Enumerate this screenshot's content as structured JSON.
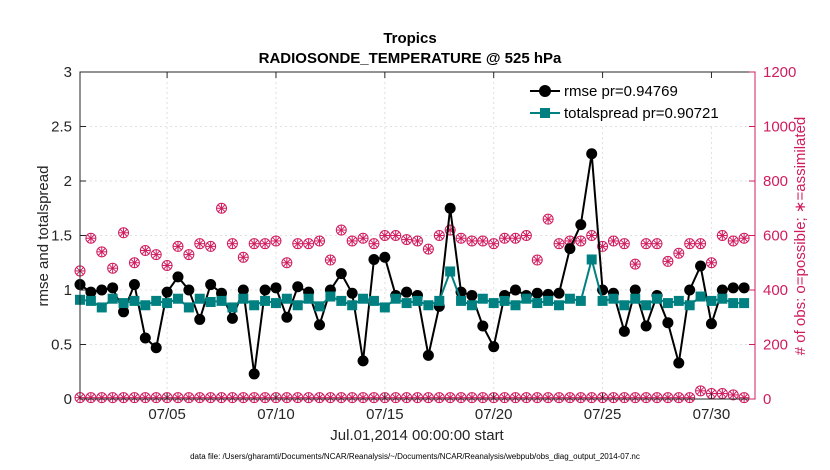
{
  "chart_data": {
    "type": "line",
    "title": "Tropics",
    "subtitle": "RADIOSONDE_TEMPERATURE @ 525 hPa",
    "xlabel": "Jul.01,2014 00:00:00 start",
    "ylabel": "rmse and totalspread",
    "y2label": "# of obs: o=possible; ∗=assimilated",
    "xlim": [
      1.0,
      32.0
    ],
    "ylim": [
      0,
      3
    ],
    "y2lim": [
      0,
      1200
    ],
    "grid": true,
    "legend_position": "top-right",
    "x_ticks": [
      {
        "value": 5,
        "label": "07/05"
      },
      {
        "value": 10,
        "label": "07/10"
      },
      {
        "value": 15,
        "label": "07/15"
      },
      {
        "value": 20,
        "label": "07/20"
      },
      {
        "value": 25,
        "label": "07/25"
      },
      {
        "value": 30,
        "label": "07/30"
      }
    ],
    "y_ticks": [
      "0",
      "0.5",
      "1",
      "1.5",
      "2",
      "2.5",
      "3"
    ],
    "y2_ticks": [
      "0",
      "200",
      "400",
      "600",
      "800",
      "1000",
      "1200"
    ],
    "series": [
      {
        "name": "rmse pr=0.94769",
        "color": "#000000",
        "marker": "circle",
        "x": [
          1.0,
          1.5,
          2.0,
          2.5,
          3.0,
          3.5,
          4.0,
          4.5,
          5.0,
          5.5,
          6.0,
          6.5,
          7.0,
          7.5,
          8.0,
          8.5,
          9.0,
          9.5,
          10.0,
          10.5,
          11.0,
          11.5,
          12.0,
          12.5,
          13.0,
          13.5,
          14.0,
          14.5,
          15.0,
          15.5,
          16.0,
          16.5,
          17.0,
          17.5,
          18.0,
          18.5,
          19.0,
          19.5,
          20.0,
          20.5,
          21.0,
          21.5,
          22.0,
          22.5,
          23.0,
          23.5,
          24.0,
          24.5,
          25.0,
          25.5,
          26.0,
          26.5,
          27.0,
          27.5,
          28.0,
          28.5,
          29.0,
          29.5,
          30.0,
          30.5,
          31.0,
          31.5
        ],
        "values": [
          1.05,
          0.98,
          1.0,
          1.02,
          0.8,
          1.05,
          0.56,
          0.47,
          0.98,
          1.12,
          1.0,
          0.73,
          1.05,
          0.97,
          0.74,
          1.0,
          0.23,
          1.0,
          1.02,
          0.75,
          1.03,
          0.98,
          0.68,
          1.0,
          1.15,
          0.97,
          0.35,
          1.28,
          1.3,
          0.95,
          0.98,
          0.95,
          0.4,
          0.85,
          1.75,
          0.98,
          0.95,
          0.67,
          0.48,
          0.95,
          1.0,
          0.95,
          0.97,
          0.96,
          0.97,
          1.38,
          1.6,
          2.25,
          1.0,
          0.97,
          0.62,
          1.0,
          0.67,
          0.95,
          0.7,
          0.33,
          1.0,
          1.22,
          0.69,
          1.0,
          1.02,
          1.02
        ]
      },
      {
        "name": "totalspread pr=0.90721",
        "color": "#008080",
        "marker": "square",
        "x": [
          1.0,
          1.5,
          2.0,
          2.5,
          3.0,
          3.5,
          4.0,
          4.5,
          5.0,
          5.5,
          6.0,
          6.5,
          7.0,
          7.5,
          8.0,
          8.5,
          9.0,
          9.5,
          10.0,
          10.5,
          11.0,
          11.5,
          12.0,
          12.5,
          13.0,
          13.5,
          14.0,
          14.5,
          15.0,
          15.5,
          16.0,
          16.5,
          17.0,
          17.5,
          18.0,
          18.5,
          19.0,
          19.5,
          20.0,
          20.5,
          21.0,
          21.5,
          22.0,
          22.5,
          23.0,
          23.5,
          24.0,
          24.5,
          25.0,
          25.5,
          26.0,
          26.5,
          27.0,
          27.5,
          28.0,
          28.5,
          29.0,
          29.5,
          30.0,
          30.5,
          31.0,
          31.5
        ],
        "values": [
          0.91,
          0.9,
          0.84,
          0.92,
          0.88,
          0.9,
          0.86,
          0.9,
          0.88,
          0.92,
          0.84,
          0.92,
          0.89,
          0.9,
          0.84,
          0.92,
          0.86,
          0.9,
          0.88,
          0.92,
          0.86,
          0.92,
          0.85,
          0.94,
          0.9,
          0.86,
          0.92,
          0.9,
          0.84,
          0.92,
          0.88,
          0.9,
          0.86,
          0.9,
          1.17,
          0.9,
          0.86,
          0.92,
          0.88,
          0.9,
          0.86,
          0.92,
          0.88,
          0.9,
          0.86,
          0.92,
          0.9,
          1.28,
          0.9,
          0.92,
          0.86,
          0.92,
          0.86,
          0.92,
          0.88,
          0.9,
          0.86,
          0.94,
          0.9,
          0.92,
          0.88,
          0.88
        ]
      },
      {
        "name": "possible",
        "color": "#d01c5f",
        "marker": "circled-plus",
        "axis": "right",
        "x": [
          1.0,
          1.5,
          2.0,
          2.5,
          3.0,
          3.5,
          4.0,
          4.5,
          5.0,
          5.5,
          6.0,
          6.5,
          7.0,
          7.5,
          8.0,
          8.5,
          9.0,
          9.5,
          10.0,
          10.5,
          11.0,
          11.5,
          12.0,
          12.5,
          13.0,
          13.5,
          14.0,
          14.5,
          15.0,
          15.5,
          16.0,
          16.5,
          17.0,
          17.5,
          18.0,
          18.5,
          19.0,
          19.5,
          20.0,
          20.5,
          21.0,
          21.5,
          22.0,
          22.5,
          23.0,
          23.5,
          24.0,
          24.5,
          25.0,
          25.5,
          26.0,
          26.5,
          27.0,
          27.5,
          28.0,
          28.5,
          29.0,
          29.5,
          30.0,
          30.5,
          31.0,
          31.5
        ],
        "values": [
          470,
          590,
          540,
          480,
          610,
          500,
          545,
          530,
          490,
          560,
          530,
          570,
          560,
          700,
          570,
          520,
          570,
          570,
          580,
          500,
          570,
          570,
          580,
          510,
          620,
          580,
          590,
          570,
          600,
          600,
          585,
          580,
          550,
          600,
          620,
          590,
          580,
          580,
          570,
          590,
          590,
          600,
          510,
          660,
          570,
          580,
          580,
          600,
          560,
          580,
          570,
          495,
          570,
          570,
          505,
          535,
          570,
          570,
          500,
          600,
          580,
          590
        ],
        "zero_values": [
          5,
          5,
          5,
          5,
          5,
          5,
          5,
          5,
          5,
          5,
          5,
          5,
          5,
          5,
          5,
          5,
          5,
          5,
          5,
          5,
          5,
          5,
          5,
          5,
          5,
          5,
          5,
          5,
          5,
          5,
          5,
          5,
          5,
          5,
          5,
          5,
          5,
          5,
          5,
          5,
          5,
          5,
          5,
          5,
          5,
          5,
          5,
          5,
          5,
          5,
          5,
          5,
          5,
          5,
          5,
          5,
          5,
          30,
          20,
          20,
          15,
          5
        ]
      }
    ]
  },
  "footer": "data file: /Users/gharamti/Documents/NCAR/Reanalysis/~/Documents/NCAR/Reanalysis/webpub/obs_diag_output_2014-07.nc"
}
